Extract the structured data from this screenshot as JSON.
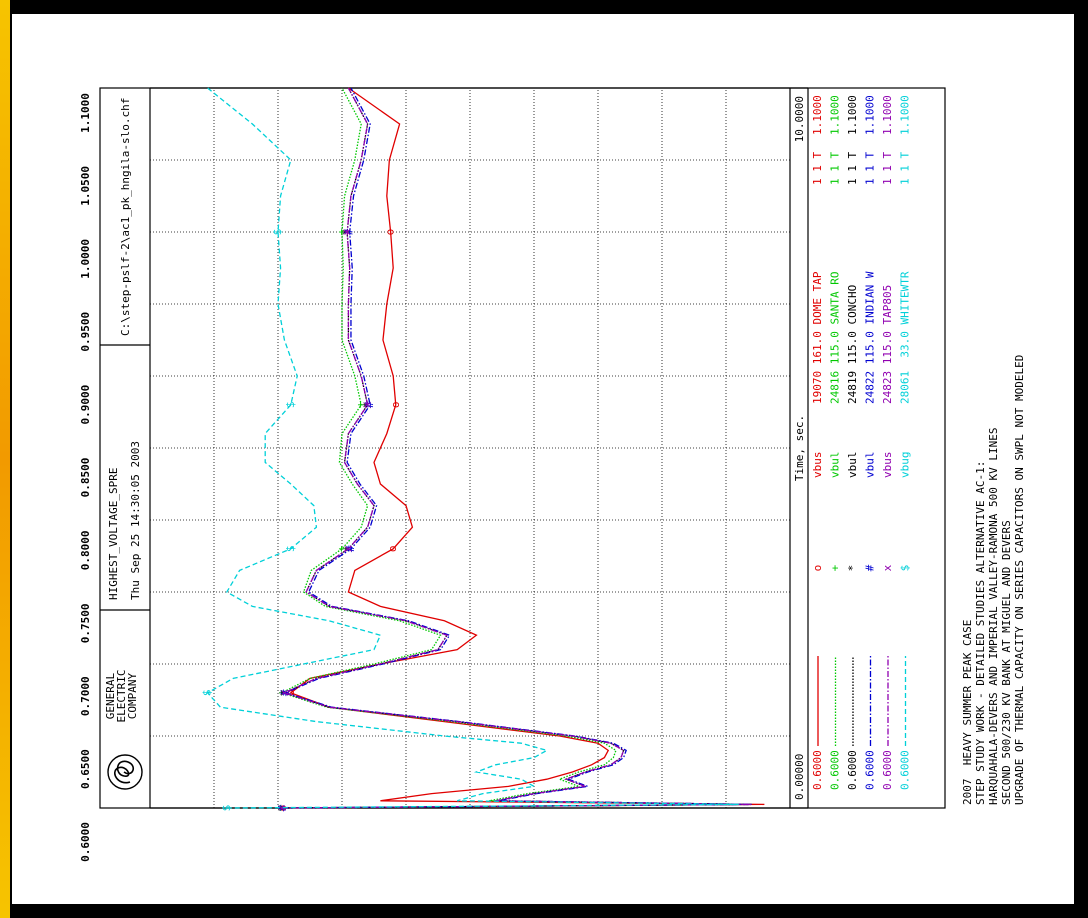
{
  "chart_data": {
    "type": "line",
    "company": [
      "GENERAL",
      "ELECTRIC",
      "COMPANY"
    ],
    "title": "HIGHEST_VOLTAGE_SPRE",
    "subtitle": "Thu Sep 25 14:30:05 2003",
    "file": "C:\\step-pslf-2\\ac1_pk_hngila-slo.chf",
    "xlabel": "Time, sec.",
    "xlim": [
      0,
      10
    ],
    "xticks": [
      {
        "value": 0,
        "label": "0.00000"
      },
      {
        "value": 10,
        "label": "10.0000"
      }
    ],
    "xgrid_step": 1,
    "ylim": [
      0.6,
      1.1
    ],
    "yticks": [
      {
        "value": 1.1,
        "label": "1.1000"
      },
      {
        "value": 1.05,
        "label": "1.0500"
      },
      {
        "value": 1.0,
        "label": "1.0000"
      },
      {
        "value": 0.95,
        "label": "0.9500"
      },
      {
        "value": 0.9,
        "label": "0.9000"
      },
      {
        "value": 0.85,
        "label": "0.8500"
      },
      {
        "value": 0.8,
        "label": "0.8000"
      },
      {
        "value": 0.75,
        "label": "0.7500"
      },
      {
        "value": 0.7,
        "label": "0.7000"
      },
      {
        "value": 0.65,
        "label": "0.6500"
      },
      {
        "value": 0.6,
        "label": "0.6000"
      }
    ],
    "grid": true,
    "x": [
      0,
      0.05,
      0.1,
      0.2,
      0.3,
      0.4,
      0.5,
      0.6,
      0.7,
      0.8,
      0.9,
      1.0,
      1.2,
      1.4,
      1.6,
      1.8,
      2.0,
      2.2,
      2.4,
      2.6,
      2.8,
      3.0,
      3.3,
      3.6,
      3.9,
      4.2,
      4.5,
      4.8,
      5.2,
      5.6,
      6.0,
      6.5,
      7.0,
      7.5,
      8.0,
      8.5,
      9.0,
      9.5,
      10.0
    ],
    "series": [
      {
        "name": "19070 161.0 DOME TAP",
        "variable": "vbus",
        "marker": "o",
        "ckt": "1 1 T",
        "scale_min": "0.6000",
        "scale_max": "1.1000",
        "color": "#e00000",
        "dash": "solid",
        "values": [
          0.996,
          0.62,
          0.92,
          0.88,
          0.82,
          0.79,
          0.77,
          0.755,
          0.745,
          0.742,
          0.75,
          0.78,
          0.87,
          0.96,
          0.99,
          0.975,
          0.92,
          0.86,
          0.845,
          0.87,
          0.92,
          0.945,
          0.94,
          0.91,
          0.895,
          0.9,
          0.92,
          0.925,
          0.915,
          0.908,
          0.91,
          0.918,
          0.915,
          0.91,
          0.912,
          0.915,
          0.913,
          0.905,
          0.945
        ]
      },
      {
        "name": "24816 115.0 SANTA RO",
        "variable": "vbul",
        "marker": "+",
        "ckt": "1 1 T",
        "scale_min": "0.6000",
        "scale_max": "1.1000",
        "color": "#00c800",
        "dash": "dotted",
        "values": [
          0.998,
          0.63,
          0.835,
          0.805,
          0.765,
          0.78,
          0.765,
          0.745,
          0.738,
          0.736,
          0.745,
          0.775,
          0.865,
          0.962,
          0.997,
          0.975,
          0.925,
          0.88,
          0.873,
          0.905,
          0.963,
          0.98,
          0.974,
          0.95,
          0.935,
          0.93,
          0.942,
          0.952,
          0.95,
          0.935,
          0.94,
          0.95,
          0.95,
          0.949,
          0.95,
          0.948,
          0.94,
          0.935,
          0.95
        ]
      },
      {
        "name": "24819 115.0 CONCHO",
        "variable": "vbul",
        "marker": "*",
        "ckt": "1 1 T",
        "scale_min": "0.6000",
        "scale_max": "1.1000",
        "color": "#000000",
        "dash": "dotted",
        "values": [
          0.997,
          0.63,
          0.83,
          0.8,
          0.76,
          0.775,
          0.76,
          0.74,
          0.732,
          0.73,
          0.74,
          0.77,
          0.86,
          0.96,
          0.995,
          0.97,
          0.92,
          0.875,
          0.868,
          0.9,
          0.96,
          0.978,
          0.97,
          0.945,
          0.93,
          0.925,
          0.938,
          0.948,
          0.945,
          0.93,
          0.935,
          0.945,
          0.945,
          0.944,
          0.946,
          0.943,
          0.935,
          0.93,
          0.945
        ]
      },
      {
        "name": "24822 115.0 INDIAN W",
        "variable": "vbul",
        "marker": "#",
        "ckt": "1 1 T",
        "scale_min": "0.6000",
        "scale_max": "1.1000",
        "color": "#0000d0",
        "dash": "dashdot",
        "values": [
          0.996,
          0.63,
          0.828,
          0.798,
          0.758,
          0.773,
          0.758,
          0.738,
          0.73,
          0.728,
          0.738,
          0.768,
          0.858,
          0.958,
          0.994,
          0.968,
          0.918,
          0.873,
          0.866,
          0.898,
          0.958,
          0.976,
          0.968,
          0.943,
          0.928,
          0.923,
          0.936,
          0.946,
          0.943,
          0.928,
          0.933,
          0.943,
          0.943,
          0.942,
          0.944,
          0.941,
          0.933,
          0.928,
          0.943
        ]
      },
      {
        "name": "24823 115.0 TAP805",
        "variable": "vbus",
        "marker": "x",
        "ckt": "1 1 T",
        "scale_min": "0.6000",
        "scale_max": "1.1000",
        "color": "#9000b0",
        "dash": "dashdot",
        "values": [
          0.997,
          0.63,
          0.83,
          0.8,
          0.76,
          0.775,
          0.76,
          0.74,
          0.732,
          0.73,
          0.74,
          0.77,
          0.86,
          0.96,
          0.995,
          0.97,
          0.92,
          0.875,
          0.868,
          0.9,
          0.96,
          0.978,
          0.97,
          0.945,
          0.93,
          0.925,
          0.938,
          0.948,
          0.945,
          0.93,
          0.935,
          0.945,
          0.945,
          0.944,
          0.946,
          0.943,
          0.935,
          0.93,
          0.945
        ]
      },
      {
        "name": "28061  33.0 WHITEWTR",
        "variable": "vbug",
        "marker": "$",
        "ckt": "1 1 T",
        "scale_min": "0.6000",
        "scale_max": "1.1000",
        "color": "#00d0d8",
        "dash": "dashed",
        "values": [
          1.04,
          0.64,
          0.86,
          0.84,
          0.8,
          0.81,
          0.845,
          0.83,
          0.8,
          0.79,
          0.81,
          0.87,
          0.97,
          1.045,
          1.055,
          1.035,
          0.98,
          0.925,
          0.92,
          0.96,
          1.02,
          1.04,
          1.03,
          0.99,
          0.97,
          0.972,
          0.99,
          1.01,
          1.01,
          0.99,
          0.985,
          0.995,
          1.0,
          0.998,
          1.0,
          0.998,
          0.99,
          1.02,
          1.055
        ]
      }
    ],
    "notes": [
      "2007  HEAVY SUMMER PEAK CASE",
      "STEP STUDY WORK - DETAILED STUDIES ALTERNATIVE AC-1:",
      "HARQUAHALA-DEVERS AND IMPERIAL VALLEY-RAMONA 500 KV LINES",
      "SECOND 500/230 KV BANK AT MIGUEL AND DEVERS",
      "UPGRADE OF THERMAL CAPACITY ON SERIES CAPACITORS ON SWPL NOT MODELED"
    ]
  }
}
